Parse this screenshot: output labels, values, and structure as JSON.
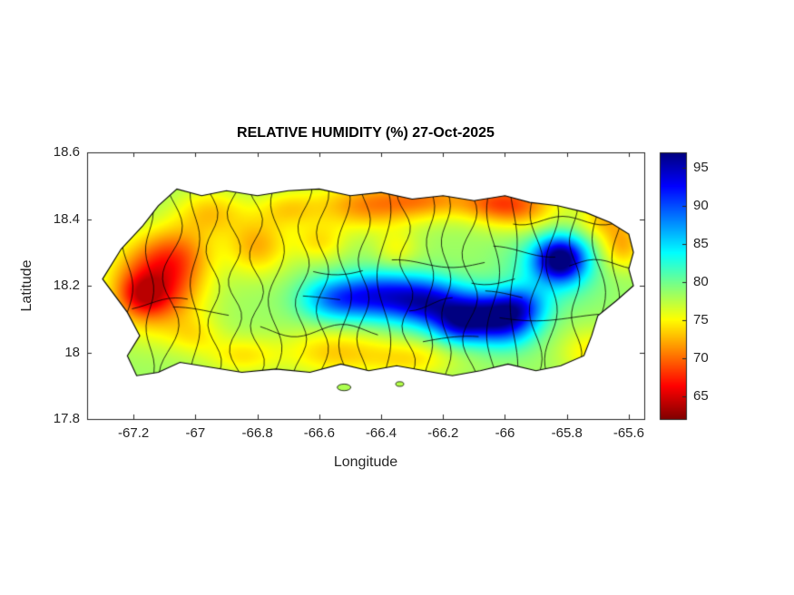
{
  "colors": {
    "background": "#ffffff",
    "boundary_lines": "#000000",
    "axis": "#262626"
  },
  "chart_data": {
    "type": "heatmap",
    "title": "RELATIVE HUMIDITY (%) 27-Oct-2025",
    "xlabel": "Longitude",
    "ylabel": "Latitude",
    "xlim": [
      -67.35,
      -65.55
    ],
    "ylim": [
      17.8,
      18.6
    ],
    "grid": false,
    "xticks": [
      -67.2,
      -67,
      -66.8,
      -66.6,
      -66.4,
      -66.2,
      -66,
      -65.8,
      -65.6
    ],
    "xtick_labels": [
      "-67.2",
      "-67",
      "-66.8",
      "-66.6",
      "-66.4",
      "-66.2",
      "-66",
      "-65.8",
      "-65.6"
    ],
    "yticks": [
      18.6,
      18.4,
      18.2,
      18,
      17.8
    ],
    "ytick_labels": [
      "18.6",
      "18.4",
      "18.2",
      "18",
      "17.8"
    ],
    "colorbar": {
      "position": "right",
      "vmin": 62,
      "vmax": 97,
      "ticks": [
        95,
        90,
        85,
        80,
        75,
        70,
        65
      ],
      "labels": [
        "95",
        "90",
        "85",
        "80",
        "75",
        "70",
        "65"
      ],
      "colormap": "jet-reversed (65=dark red, 95=dark blue)"
    },
    "humidity_field": {
      "units": "%",
      "base": 78.5,
      "clamp": [
        64,
        97
      ],
      "blobs": [
        [
          -67.13,
          18.2,
          0.1,
          0.09,
          -12
        ],
        [
          -67.17,
          18.17,
          0.05,
          0.04,
          -5
        ],
        [
          -67.05,
          18.3,
          0.08,
          0.06,
          -5
        ],
        [
          -66.95,
          18.42,
          0.08,
          0.05,
          -5
        ],
        [
          -66.8,
          18.32,
          0.07,
          0.06,
          -6
        ],
        [
          -66.7,
          18.43,
          0.07,
          0.04,
          -4
        ],
        [
          -66.45,
          18.44,
          0.12,
          0.05,
          -7
        ],
        [
          -66.25,
          18.46,
          0.1,
          0.04,
          -6
        ],
        [
          -66.05,
          18.45,
          0.08,
          0.04,
          -5
        ],
        [
          -65.95,
          18.44,
          0.09,
          0.05,
          -7
        ],
        [
          -65.68,
          18.4,
          0.06,
          0.04,
          -5
        ],
        [
          -65.62,
          18.32,
          0.05,
          0.05,
          -6
        ],
        [
          -66.55,
          18.16,
          0.08,
          0.045,
          9
        ],
        [
          -66.4,
          18.17,
          0.09,
          0.05,
          12
        ],
        [
          -66.25,
          18.15,
          0.08,
          0.05,
          13
        ],
        [
          -66.1,
          18.12,
          0.08,
          0.05,
          11
        ],
        [
          -66.0,
          18.09,
          0.07,
          0.05,
          12
        ],
        [
          -65.95,
          18.14,
          0.06,
          0.04,
          8
        ],
        [
          -66.15,
          18.08,
          0.06,
          0.04,
          8
        ],
        [
          -65.82,
          18.28,
          0.055,
          0.045,
          17
        ],
        [
          -65.85,
          18.25,
          0.1,
          0.07,
          5
        ],
        [
          -66.55,
          18.0,
          0.12,
          0.05,
          -5
        ],
        [
          -66.3,
          17.98,
          0.1,
          0.04,
          -4
        ],
        [
          -66.85,
          17.99,
          0.08,
          0.04,
          -4
        ],
        [
          -67.0,
          18.05,
          0.06,
          0.04,
          -3
        ],
        [
          -65.72,
          18.0,
          0.07,
          0.05,
          -4
        ],
        [
          -66.6,
          18.33,
          0.06,
          0.04,
          -4
        ],
        [
          -66.35,
          18.31,
          0.05,
          0.04,
          -3
        ]
      ]
    },
    "island_outline_puerto_rico": [
      [
        -67.3,
        18.22
      ],
      [
        -67.24,
        18.31
      ],
      [
        -67.17,
        18.38
      ],
      [
        -67.12,
        18.44
      ],
      [
        -67.06,
        18.49
      ],
      [
        -66.98,
        18.47
      ],
      [
        -66.9,
        18.485
      ],
      [
        -66.8,
        18.47
      ],
      [
        -66.7,
        18.485
      ],
      [
        -66.6,
        18.49
      ],
      [
        -66.5,
        18.47
      ],
      [
        -66.4,
        18.48
      ],
      [
        -66.3,
        18.46
      ],
      [
        -66.2,
        18.47
      ],
      [
        -66.1,
        18.455
      ],
      [
        -66.0,
        18.47
      ],
      [
        -65.92,
        18.45
      ],
      [
        -65.83,
        18.44
      ],
      [
        -65.74,
        18.42
      ],
      [
        -65.66,
        18.39
      ],
      [
        -65.6,
        18.355
      ],
      [
        -65.585,
        18.3
      ],
      [
        -65.6,
        18.25
      ],
      [
        -65.585,
        18.2
      ],
      [
        -65.64,
        18.155
      ],
      [
        -65.7,
        18.11
      ],
      [
        -65.72,
        18.05
      ],
      [
        -65.745,
        17.99
      ],
      [
        -65.82,
        17.96
      ],
      [
        -65.9,
        17.945
      ],
      [
        -65.99,
        17.965
      ],
      [
        -66.08,
        17.945
      ],
      [
        -66.17,
        17.93
      ],
      [
        -66.26,
        17.945
      ],
      [
        -66.35,
        17.96
      ],
      [
        -66.44,
        17.945
      ],
      [
        -66.53,
        17.965
      ],
      [
        -66.63,
        17.94
      ],
      [
        -66.74,
        17.95
      ],
      [
        -66.85,
        17.94
      ],
      [
        -66.95,
        17.955
      ],
      [
        -67.05,
        17.97
      ],
      [
        -67.12,
        17.94
      ],
      [
        -67.19,
        17.93
      ],
      [
        -67.22,
        17.99
      ],
      [
        -67.18,
        18.05
      ],
      [
        -67.22,
        18.12
      ]
    ],
    "islets": [
      [
        -66.52,
        17.895,
        0.022,
        0.01
      ],
      [
        -66.34,
        17.905,
        0.013,
        0.007
      ]
    ]
  }
}
